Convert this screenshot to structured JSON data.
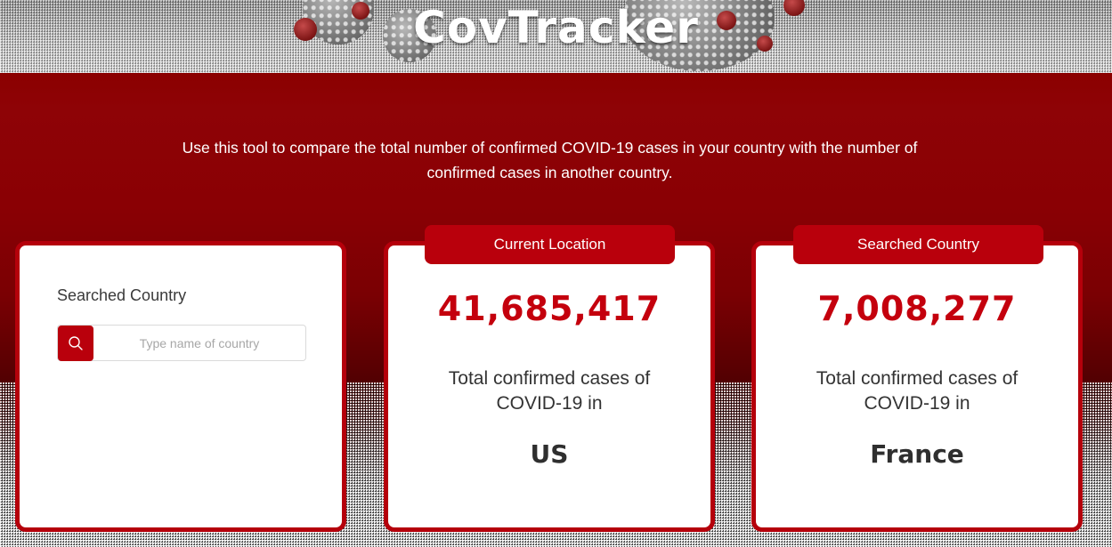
{
  "header": {
    "title": "CovTracker"
  },
  "intro": {
    "text": "Use this tool to compare the total number of confirmed COVID-19 cases in your country with the number of confirmed cases in another country."
  },
  "search_card": {
    "label": "Searched Country",
    "placeholder": "Type name of country",
    "icon": "search-icon"
  },
  "current_card": {
    "tab_label": "Current Location",
    "count": "41,685,417",
    "description": "Total confirmed cases of COVID-19 in",
    "country": "US"
  },
  "searched_card": {
    "tab_label": "Searched Country",
    "count": "7,008,277",
    "description": "Total confirmed cases of COVID-19 in",
    "country": "France"
  },
  "colors": {
    "brand_red": "#b9000c",
    "count_red": "#c4000d",
    "hero_red": "#8b0000"
  }
}
